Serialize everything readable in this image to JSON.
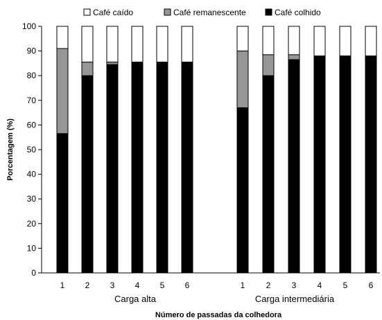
{
  "chart_data": {
    "type": "bar",
    "stacked": true,
    "ylabel": "Porcentagem (%)",
    "xlabel": "Número de passadas da colhedora",
    "ylim": [
      0,
      100
    ],
    "yticks": [
      0,
      10,
      20,
      30,
      40,
      50,
      60,
      70,
      80,
      90,
      100
    ],
    "grid": false,
    "legend": {
      "placement": "top",
      "entries": [
        {
          "name": "Café caído",
          "color": "#ffffff"
        },
        {
          "name": "Café remanescente",
          "color": "#969696"
        },
        {
          "name": "Café colhido",
          "color": "#000000"
        }
      ]
    },
    "groups": [
      {
        "label": "Carga alta",
        "categories": [
          "1",
          "2",
          "3",
          "4",
          "5",
          "6"
        ],
        "series": [
          {
            "name": "Café colhido",
            "values": [
              56.5,
              80,
              84.5,
              85.5,
              85.5,
              85.5
            ]
          },
          {
            "name": "Café remanescente",
            "values": [
              34.5,
              5.5,
              1,
              0,
              0,
              0
            ]
          },
          {
            "name": "Café caído",
            "values": [
              9,
              14.5,
              14.5,
              14.5,
              14.5,
              14.5
            ]
          }
        ]
      },
      {
        "label": "Carga intermediária",
        "categories": [
          "1",
          "2",
          "3",
          "4",
          "5",
          "6"
        ],
        "series": [
          {
            "name": "Café colhido",
            "values": [
              67,
              80,
              86.5,
              88,
              88,
              88
            ]
          },
          {
            "name": "Café remanescente",
            "values": [
              23,
              8.5,
              2,
              0,
              0,
              0
            ]
          },
          {
            "name": "Café caído",
            "values": [
              10,
              11.5,
              11.5,
              12,
              12,
              12
            ]
          }
        ]
      }
    ]
  }
}
